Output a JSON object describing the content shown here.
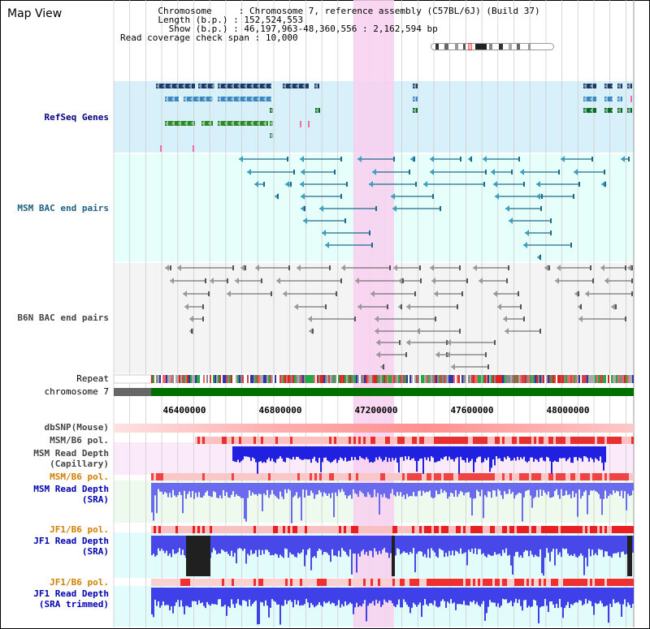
{
  "window": {
    "title": "Map View"
  },
  "info": {
    "chromosome_label": "Chromosome     ",
    "chromosome_value": "Chromosome 7, reference assembly (C57BL/6J) (Build 37)",
    "length_label": "Length (b.p.) ",
    "length_value": "152,524,553",
    "show_label": "  Show (b.p.) ",
    "show_value": "46,197,963-48,360,556 : 2,162,594 bp",
    "coverage_label": "Read coverage check span",
    "coverage_value": "10,000"
  },
  "tracks": {
    "refseq": {
      "label": "RefSeq Genes",
      "color": "#000080"
    },
    "msm_bac": {
      "label": "MSM BAC end pairs",
      "color": "#1e6080"
    },
    "b6n_bac": {
      "label": "B6N BAC end pairs",
      "color": "#444444"
    },
    "repeat": {
      "label": "Repeat",
      "color": "#000000"
    },
    "chromosome": {
      "label": "chromosome 7",
      "color": "#000000"
    },
    "dbsnp": {
      "label": "dbSNP(Mouse)",
      "color": "#444444"
    },
    "msm_b6_pol_1": {
      "label": "MSM/B6 pol.",
      "color": "#444444"
    },
    "msm_read_depth_cap_1": {
      "label": "MSM Read Depth",
      "color": "#444444"
    },
    "msm_read_depth_cap_2": {
      "label": "(Capillary)",
      "color": "#444444"
    },
    "msm_b6_pol_2": {
      "label": "MSM/B6 pol.",
      "color": "#d08000"
    },
    "msm_read_depth_sra_1": {
      "label": "MSM Read Depth",
      "color": "#0000b0"
    },
    "msm_read_depth_sra_2": {
      "label": "(SRA)",
      "color": "#0000b0"
    },
    "jf1_b6_pol_1": {
      "label": "JF1/B6 pol.",
      "color": "#d08000"
    },
    "jf1_read_depth_1": {
      "label": "JF1 Read Depth",
      "color": "#0000b0"
    },
    "jf1_read_depth_2": {
      "label": "(SRA)",
      "color": "#0000b0"
    },
    "jf1_b6_pol_2": {
      "label": "JF1/B6 pol.",
      "color": "#d08000"
    },
    "jf1_trim_1": {
      "label": "JF1 Read Depth",
      "color": "#0000b0"
    },
    "jf1_trim_2": {
      "label": "(SRA trimmed)",
      "color": "#0000b0"
    }
  },
  "axis": {
    "ticks": [
      "46400000",
      "46800000",
      "47200000",
      "47600000",
      "48000000"
    ]
  },
  "colors": {
    "highlight": "#f8d0f0",
    "refseq_bg": "#d8f0fa",
    "msm_bg": "#e6fffb",
    "b6n_bg": "#f2f2f2",
    "chromosome_bar": "#007000",
    "depth_blue": "#2020e0"
  }
}
